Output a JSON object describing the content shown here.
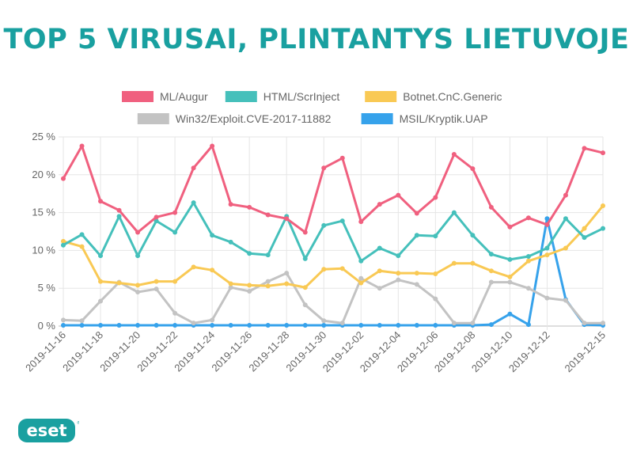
{
  "title": "TOP 5 VIRUSAI, PLINTANTYS LIETUVOJE",
  "logo": {
    "text": "eset",
    "color": "#1aa0a0"
  },
  "chart_data": {
    "type": "line",
    "title": "TOP 5 VIRUSAI, PLINTANTYS LIETUVOJE",
    "xlabel": "",
    "ylabel": "",
    "ylim": [
      0,
      25
    ],
    "y_ticks": [
      0,
      5,
      10,
      15,
      20,
      25
    ],
    "y_tick_labels": [
      "0 %",
      "5 %",
      "10 %",
      "15 %",
      "20 %",
      "25 %"
    ],
    "grid": true,
    "legend_position": "top",
    "x": [
      "2019-11-16",
      "2019-11-17",
      "2019-11-18",
      "2019-11-19",
      "2019-11-20",
      "2019-11-21",
      "2019-11-22",
      "2019-11-23",
      "2019-11-24",
      "2019-11-25",
      "2019-11-26",
      "2019-11-27",
      "2019-11-28",
      "2019-11-29",
      "2019-11-30",
      "2019-12-01",
      "2019-12-02",
      "2019-12-03",
      "2019-12-04",
      "2019-12-05",
      "2019-12-06",
      "2019-12-07",
      "2019-12-08",
      "2019-12-09",
      "2019-12-10",
      "2019-12-11",
      "2019-12-12",
      "2019-12-13",
      "2019-12-14",
      "2019-12-15"
    ],
    "x_tick_labels": [
      "2019-11-16",
      "2019-11-18",
      "2019-11-20",
      "2019-11-22",
      "2019-11-24",
      "2019-11-26",
      "2019-11-28",
      "2019-11-30",
      "2019-12-02",
      "2019-12-04",
      "2019-12-06",
      "2019-12-08",
      "2019-12-10",
      "2019-12-12",
      "2019-12-15"
    ],
    "x_tick_indices": [
      0,
      2,
      4,
      6,
      8,
      10,
      12,
      14,
      16,
      18,
      20,
      22,
      24,
      26,
      29
    ],
    "series": [
      {
        "name": "ML/Augur",
        "color": "#f0607f",
        "values": [
          19.5,
          23.8,
          16.5,
          15.3,
          12.4,
          14.4,
          15.0,
          20.9,
          23.8,
          16.1,
          15.7,
          14.7,
          14.2,
          12.4,
          20.9,
          22.2,
          13.8,
          16.1,
          17.3,
          14.9,
          17.0,
          22.7,
          20.8,
          15.7,
          13.1,
          14.3,
          13.4,
          17.3,
          23.5,
          22.9
        ]
      },
      {
        "name": "HTML/ScrInject",
        "color": "#45c0bb",
        "values": [
          10.7,
          12.1,
          9.3,
          14.5,
          9.3,
          13.9,
          12.4,
          16.3,
          12.0,
          11.1,
          9.6,
          9.4,
          14.5,
          8.9,
          13.3,
          13.9,
          8.6,
          10.3,
          9.3,
          12.0,
          11.9,
          15.0,
          12.0,
          9.5,
          8.8,
          9.2,
          10.3,
          14.2,
          11.7,
          12.9
        ]
      },
      {
        "name": "Botnet.CnC.Generic",
        "color": "#f9c954",
        "values": [
          11.2,
          10.5,
          5.9,
          5.7,
          5.4,
          5.9,
          5.9,
          7.8,
          7.4,
          5.6,
          5.4,
          5.3,
          5.6,
          5.1,
          7.5,
          7.6,
          5.7,
          7.3,
          7.0,
          7.0,
          6.9,
          8.3,
          8.3,
          7.3,
          6.5,
          8.6,
          9.4,
          10.3,
          12.9,
          15.9
        ]
      },
      {
        "name": "Win32/Exploit.CVE-2017-11882",
        "color": "#c3c3c3",
        "values": [
          0.8,
          0.7,
          3.3,
          5.8,
          4.5,
          4.9,
          1.7,
          0.4,
          0.8,
          5.1,
          4.6,
          5.9,
          7.0,
          2.8,
          0.7,
          0.4,
          6.3,
          5.0,
          6.1,
          5.5,
          3.6,
          0.4,
          0.4,
          5.8,
          5.8,
          5.0,
          3.7,
          3.4,
          0.4,
          0.4
        ]
      },
      {
        "name": "MSIL/Kryptik.UAP",
        "color": "#36a2eb",
        "values": [
          0.1,
          0.1,
          0.1,
          0.1,
          0.1,
          0.1,
          0.1,
          0.1,
          0.1,
          0.1,
          0.1,
          0.1,
          0.1,
          0.1,
          0.1,
          0.1,
          0.1,
          0.1,
          0.1,
          0.1,
          0.1,
          0.1,
          0.1,
          0.2,
          1.6,
          0.2,
          14.2,
          3.5,
          0.2,
          0.1
        ]
      }
    ]
  }
}
